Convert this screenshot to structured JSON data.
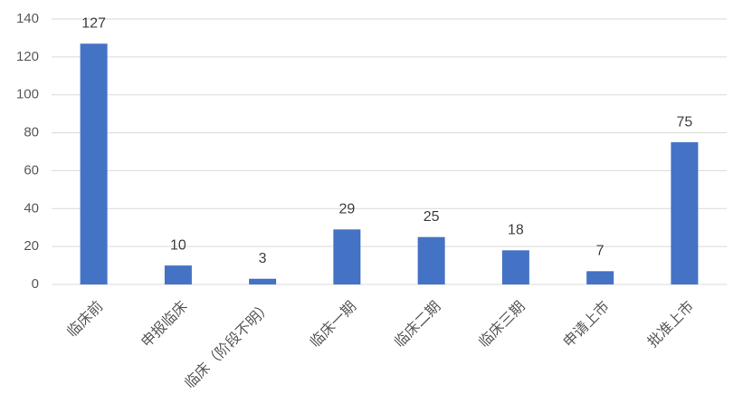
{
  "chart_data": {
    "type": "bar",
    "categories": [
      "临床前",
      "申报临床",
      "临床（阶段不明）",
      "临床一期",
      "临床二期",
      "临床三期",
      "申请上市",
      "批准上市"
    ],
    "values": [
      127,
      10,
      3,
      29,
      25,
      18,
      7,
      75
    ],
    "color": "#4472c4",
    "ylim": [
      0,
      140
    ],
    "yticks": [
      0,
      20,
      40,
      60,
      80,
      100,
      120,
      140
    ],
    "grid": true
  }
}
